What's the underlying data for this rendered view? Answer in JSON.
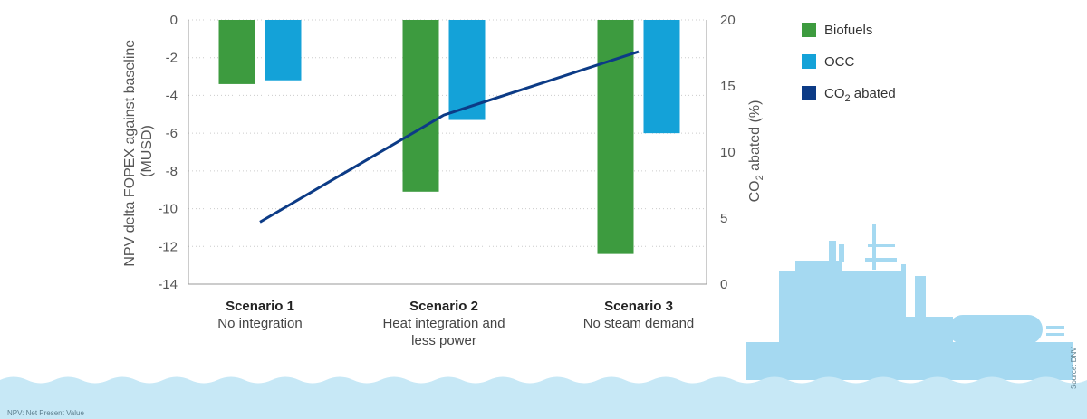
{
  "chart_data": {
    "type": "bar",
    "categories": [
      {
        "title": "Scenario 1",
        "subtitle": [
          "No integration"
        ]
      },
      {
        "title": "Scenario 2",
        "subtitle": [
          "Heat integration and",
          "less power"
        ]
      },
      {
        "title": "Scenario 3",
        "subtitle": [
          "No steam demand"
        ]
      }
    ],
    "series": [
      {
        "name": "Biofuels",
        "type": "bar",
        "axis": "left",
        "values": [
          -3.4,
          -9.1,
          -12.4
        ],
        "color": "#3d9b3f"
      },
      {
        "name": "OCC",
        "type": "bar",
        "axis": "left",
        "values": [
          -3.2,
          -5.3,
          -6.0
        ],
        "color": "#14a2d8"
      },
      {
        "name": "CO",
        "name_sub": "2",
        "name_rest": " abated",
        "type": "line",
        "axis": "right",
        "values": [
          4.7,
          12.8,
          17.6
        ],
        "color": "#0c3b86"
      }
    ],
    "ylabel_left": [
      "NPV delta FOPEX against baseline",
      "(MUSD)"
    ],
    "ylabel_right": {
      "pre": "CO",
      "sub": "2",
      "post": " abated (%)"
    },
    "ylim_left": [
      -14,
      0
    ],
    "yticks_left": [
      "0",
      "-2",
      "-4",
      "-6",
      "-8",
      "-10",
      "-12",
      "-14"
    ],
    "ylim_right": [
      0,
      20
    ],
    "yticks_right": [
      "20",
      "15",
      "10",
      "5",
      "0"
    ],
    "grid": true,
    "legend_position": "top-right"
  },
  "footnote": "NPV: Net Present Value",
  "source": "Source: DNV",
  "colors": {
    "water": "#c7e8f6",
    "ship": "#a5d9f1",
    "grid": "#cccccc",
    "axis": "#999999"
  }
}
